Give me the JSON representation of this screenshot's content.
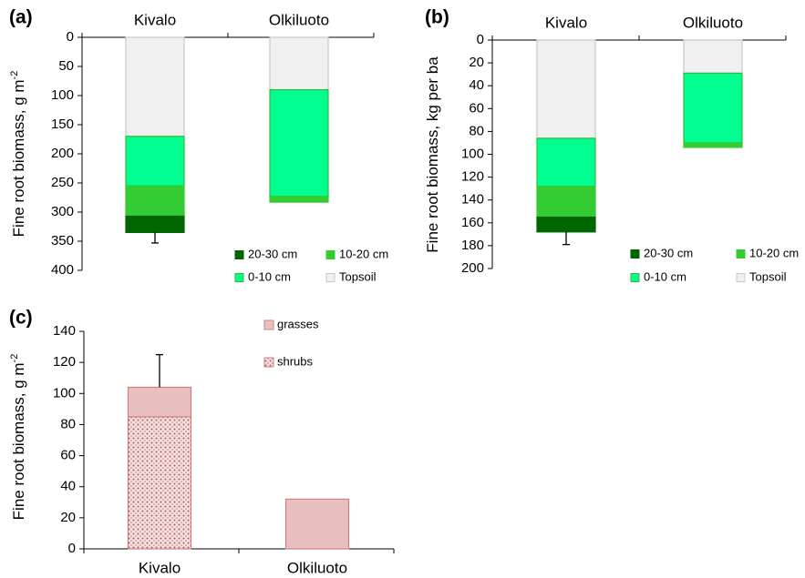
{
  "chart_data": [
    {
      "panel": "(a)",
      "type": "bar",
      "stacked": true,
      "orientation": "inverted-vertical",
      "categories": [
        "Kivalo",
        "Olkiluoto"
      ],
      "ylabel": "Fine root biomass, g m",
      "ylabel_sup": "-2",
      "ylim": [
        0,
        400
      ],
      "yticks": [
        0,
        50,
        100,
        150,
        200,
        250,
        300,
        350,
        400
      ],
      "series": [
        {
          "name": "Topsoil",
          "color": "#f0f0f0",
          "border": "#c8c8c8",
          "values": [
            170,
            90
          ]
        },
        {
          "name": "0-10 cm",
          "color": "#00ff90",
          "border": "#33bb33",
          "values": [
            85,
            183
          ]
        },
        {
          "name": "10-20 cm",
          "color": "#33cc33",
          "border": "#33cc33",
          "values": [
            52,
            10
          ]
        },
        {
          "name": "20-30 cm",
          "color": "#006600",
          "border": "#006600",
          "values": [
            28,
            0
          ]
        }
      ],
      "error": [
        {
          "category": "Kivalo",
          "base": 335,
          "tip": 353
        }
      ],
      "legend": {
        "position": "bottom-right",
        "rows": [
          [
            "20-30 cm",
            "10-20 cm"
          ],
          [
            "0-10 cm",
            "Topsoil"
          ]
        ]
      },
      "grid": false
    },
    {
      "panel": "(b)",
      "type": "bar",
      "stacked": true,
      "orientation": "inverted-vertical",
      "categories": [
        "Kivalo",
        "Olkiluoto"
      ],
      "ylabel": "Fine root biomass, kg per ba",
      "ylim": [
        0,
        200
      ],
      "yticks": [
        0,
        20,
        40,
        60,
        80,
        100,
        120,
        140,
        160,
        180,
        200
      ],
      "series": [
        {
          "name": "Topsoil",
          "color": "#f0f0f0",
          "border": "#c8c8c8",
          "values": [
            86,
            29
          ]
        },
        {
          "name": "0-10 cm",
          "color": "#00ff90",
          "border": "#33bb33",
          "values": [
            42,
            61
          ]
        },
        {
          "name": "10-20 cm",
          "color": "#33cc33",
          "border": "#33cc33",
          "values": [
            27,
            4
          ]
        },
        {
          "name": "20-30 cm",
          "color": "#006600",
          "border": "#006600",
          "values": [
            13,
            0
          ]
        }
      ],
      "error": [
        {
          "category": "Kivalo",
          "base": 168,
          "tip": 179
        }
      ],
      "legend": {
        "position": "bottom-right",
        "rows": [
          [
            "20-30 cm",
            "10-20 cm"
          ],
          [
            "0-10 cm",
            "Topsoil"
          ]
        ]
      },
      "grid": false
    },
    {
      "panel": "(c)",
      "type": "bar",
      "stacked": true,
      "categories": [
        "Kivalo",
        "Olkiluoto"
      ],
      "ylabel": "Fine root biomass, g m",
      "ylabel_sup": "-2",
      "ylim": [
        0,
        140
      ],
      "yticks": [
        0,
        20,
        40,
        60,
        80,
        100,
        120,
        140
      ],
      "series": [
        {
          "name": "shrubs",
          "color": "#e8b8b8",
          "pattern": "dotted",
          "border": "#d08080",
          "values": [
            85,
            0
          ]
        },
        {
          "name": "grasses",
          "color": "#e8c0c0",
          "border": "#d08080",
          "values": [
            19,
            32
          ]
        }
      ],
      "error": [
        {
          "category": "Kivalo",
          "base": 104,
          "tip": 125
        }
      ],
      "legend": {
        "position": "top-right",
        "items": [
          "grasses",
          "shrubs"
        ]
      },
      "grid": false
    }
  ]
}
